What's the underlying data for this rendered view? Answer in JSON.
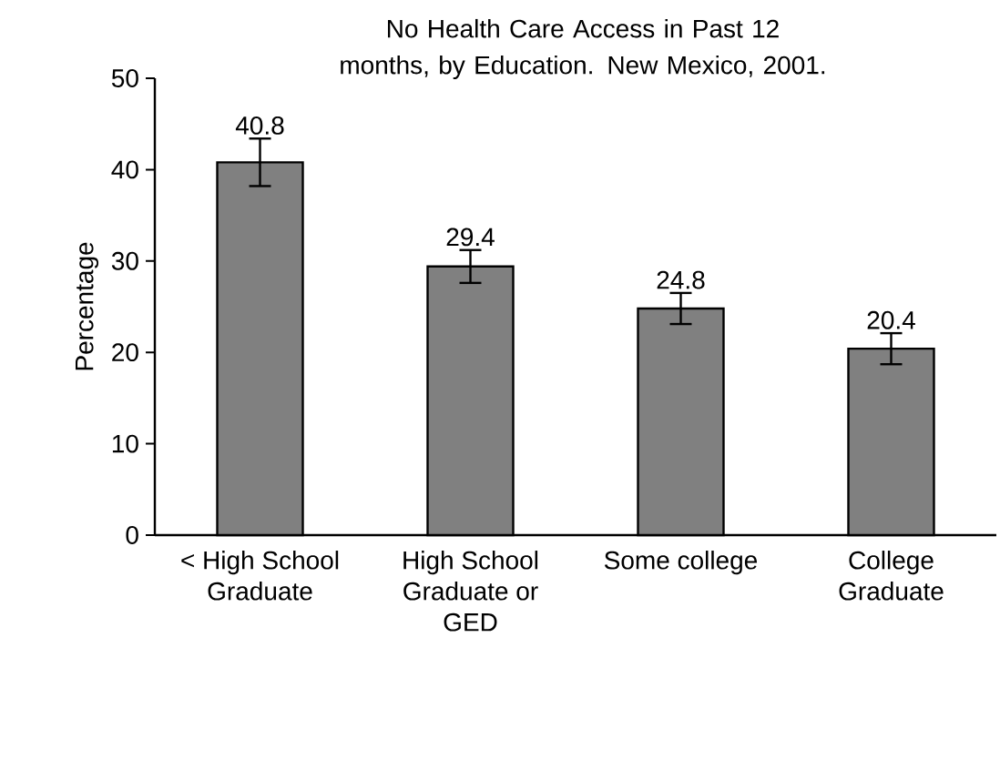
{
  "chart_data": {
    "type": "bar",
    "title": "No Health Care Access in Past 12 months, by Education.  New Mexico, 2001.",
    "ylabel": "Percentage",
    "categories": [
      "< High School Graduate",
      "High School Graduate or GED",
      "Some college",
      "College Graduate"
    ],
    "values": [
      40.8,
      29.4,
      24.8,
      20.4
    ],
    "errors": [
      2.6,
      1.8,
      1.7,
      1.7
    ],
    "color": "#808080",
    "data_labels": true,
    "ylim": [
      0,
      50
    ],
    "yticks": [
      0,
      10,
      20,
      30,
      40,
      50
    ],
    "grid": false
  }
}
